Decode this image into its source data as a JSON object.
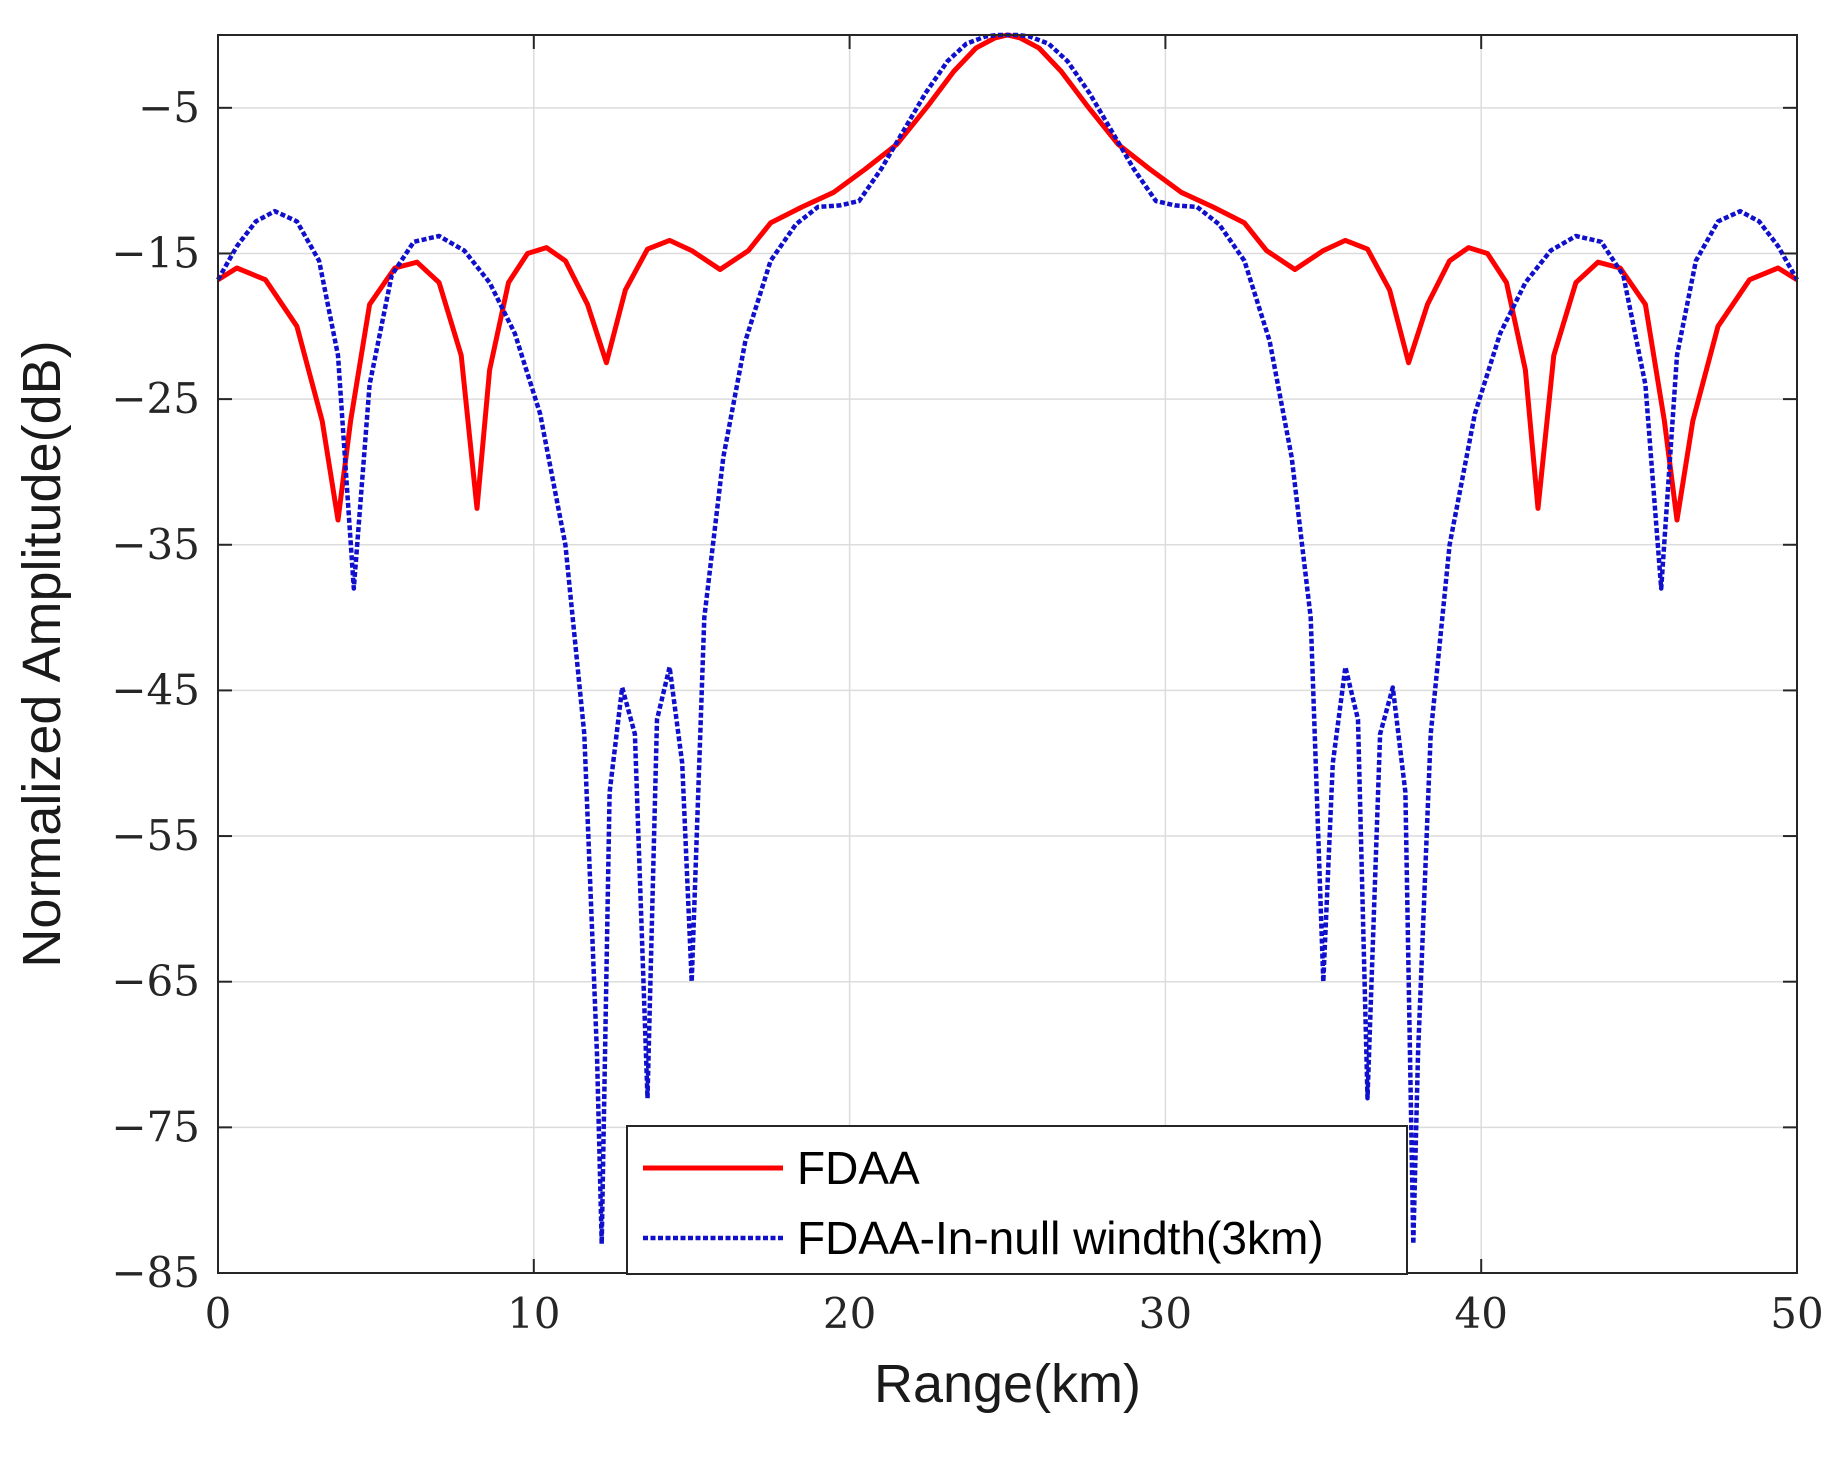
{
  "chart_data": {
    "type": "line",
    "title": "",
    "xlabel": "Range(km)",
    "ylabel": "Normalized Amplitude(dB)",
    "xlim": [
      0,
      50
    ],
    "ylim": [
      -85,
      0
    ],
    "xticks": [
      0,
      10,
      20,
      30,
      40,
      50
    ],
    "yticks": [
      -5,
      -15,
      -25,
      -35,
      -45,
      -55,
      -65,
      -75,
      -85
    ],
    "ytick_labels": [
      "−5",
      "−15",
      "−25",
      "−35",
      "−45",
      "−55",
      "−65",
      "−75",
      "−85"
    ],
    "xtick_labels": [
      "0",
      "10",
      "20",
      "30",
      "40",
      "50"
    ],
    "grid": true,
    "legend_position": "bottom-center",
    "colors": {
      "fdaa": "#ff0000",
      "fdaa_null": "#1010cc"
    },
    "series": [
      {
        "name": "FDAA",
        "style": "solid",
        "x": [
          0,
          0.6,
          1.5,
          2.5,
          3.3,
          3.8,
          4.2,
          4.8,
          5.6,
          6.3,
          7.0,
          7.7,
          8.2,
          8.6,
          9.2,
          9.8,
          10.4,
          11.0,
          11.7,
          12.3,
          12.9,
          13.6,
          14.3,
          15.0,
          15.9,
          16.8,
          17.5,
          18.5,
          19.5,
          20.5,
          21.5,
          22.5,
          23.3,
          24.0,
          24.6,
          25.0,
          25.4,
          26.0,
          26.7,
          27.5,
          28.5,
          29.5,
          30.5,
          31.5,
          32.5,
          33.2,
          34.1,
          35.0,
          35.7,
          36.4,
          37.1,
          37.7,
          38.3,
          39.0,
          39.6,
          40.2,
          40.8,
          41.4,
          41.8,
          42.3,
          43.0,
          43.7,
          44.4,
          45.2,
          45.8,
          46.2,
          46.7,
          47.5,
          48.5,
          49.4,
          50
        ],
        "y": [
          -16.8,
          -16.0,
          -16.8,
          -20.0,
          -26.5,
          -33.3,
          -26.5,
          -18.5,
          -16.0,
          -15.6,
          -17.0,
          -22.0,
          -32.5,
          -23.0,
          -17.0,
          -15.0,
          -14.6,
          -15.5,
          -18.5,
          -22.5,
          -17.5,
          -14.7,
          -14.1,
          -14.8,
          -16.1,
          -14.8,
          -12.9,
          -11.8,
          -10.8,
          -9.2,
          -7.5,
          -4.8,
          -2.5,
          -0.9,
          -0.2,
          0.0,
          -0.2,
          -0.9,
          -2.5,
          -4.8,
          -7.5,
          -9.2,
          -10.8,
          -11.8,
          -12.9,
          -14.8,
          -16.1,
          -14.8,
          -14.1,
          -14.7,
          -17.5,
          -22.5,
          -18.5,
          -15.5,
          -14.6,
          -15.0,
          -17.0,
          -23.0,
          -32.5,
          -22.0,
          -17.0,
          -15.6,
          -16.0,
          -18.5,
          -26.5,
          -33.3,
          -26.5,
          -20.0,
          -16.8,
          -16.0,
          -16.8
        ]
      },
      {
        "name": "FDAA-In-null windth(3km)",
        "style": "dotted",
        "x": [
          0,
          0.6,
          1.2,
          1.8,
          2.5,
          3.2,
          3.8,
          4.3,
          4.8,
          5.5,
          6.2,
          7.0,
          7.8,
          8.6,
          9.4,
          10.2,
          11.0,
          11.6,
          12.0,
          12.15,
          12.4,
          12.8,
          13.2,
          13.6,
          13.9,
          14.3,
          14.7,
          15.0,
          15.4,
          16.0,
          16.7,
          17.5,
          18.3,
          19.0,
          19.7,
          20.3,
          21.0,
          21.7,
          22.4,
          23.1,
          23.7,
          24.3,
          24.7,
          25.0,
          25.3,
          25.7,
          26.3,
          26.9,
          27.6,
          28.3,
          29.0,
          29.7,
          30.3,
          31.0,
          31.7,
          32.5,
          33.3,
          34.0,
          34.6,
          35.0,
          35.3,
          35.7,
          36.1,
          36.4,
          36.8,
          37.2,
          37.6,
          37.85,
          38.0,
          38.4,
          39.0,
          39.8,
          40.6,
          41.4,
          42.2,
          43.0,
          43.8,
          44.5,
          45.2,
          45.7,
          46.2,
          46.8,
          47.5,
          48.2,
          48.8,
          49.4,
          50
        ],
        "y": [
          -16.8,
          -14.5,
          -12.8,
          -12.1,
          -12.8,
          -15.5,
          -22.0,
          -38.0,
          -24.0,
          -16.5,
          -14.2,
          -13.8,
          -14.8,
          -17.0,
          -20.5,
          -26.0,
          -35.0,
          -48.0,
          -70.0,
          -83.0,
          -52.0,
          -44.8,
          -48.0,
          -73.0,
          -47.0,
          -43.4,
          -50.0,
          -65.0,
          -40.0,
          -29.0,
          -21.0,
          -15.5,
          -13.0,
          -11.8,
          -11.7,
          -11.4,
          -9.2,
          -6.6,
          -4.0,
          -1.8,
          -0.6,
          -0.1,
          0.0,
          0.0,
          0.0,
          -0.1,
          -0.6,
          -1.8,
          -4.0,
          -6.6,
          -9.2,
          -11.4,
          -11.7,
          -11.8,
          -13.0,
          -15.5,
          -21.0,
          -29.0,
          -40.0,
          -65.0,
          -50.0,
          -43.4,
          -47.0,
          -73.0,
          -48.0,
          -44.8,
          -52.0,
          -83.0,
          -70.0,
          -48.0,
          -35.0,
          -26.0,
          -20.5,
          -17.0,
          -14.8,
          -13.8,
          -14.2,
          -16.5,
          -24.0,
          -38.0,
          -22.0,
          -15.5,
          -12.8,
          -12.1,
          -12.8,
          -14.5,
          -16.8
        ]
      }
    ]
  }
}
